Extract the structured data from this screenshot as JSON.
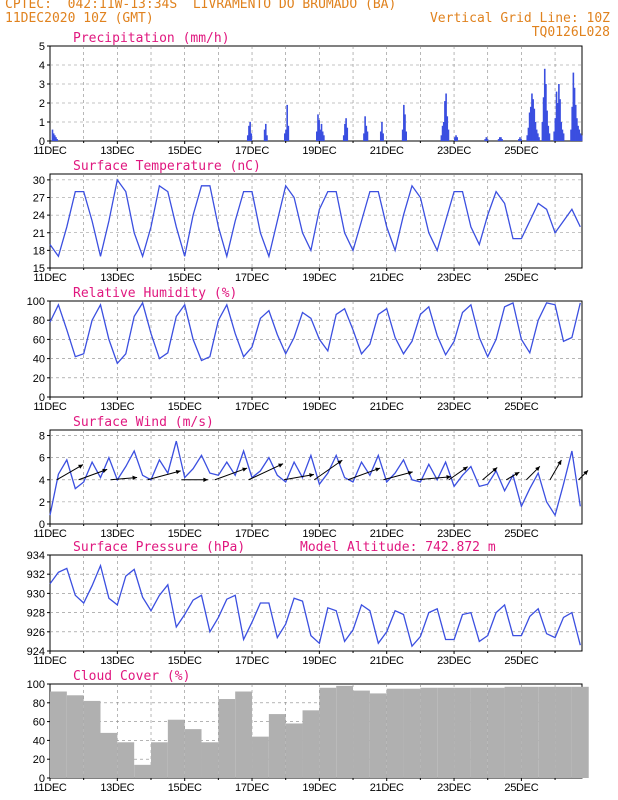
{
  "header": {
    "line1_left": "CPTEC:  042:11W-13:34S  LIVRAMENTO DO BRUMADO (BA)",
    "line2_left": "11DEC2020 10Z (GMT)",
    "line2_right": "Vertical Grid Line: 10Z",
    "line3_right": "TQ0126L028"
  },
  "colors": {
    "header": "#e0821e",
    "panel_title": "#e0177f",
    "line": "#3b4fe0",
    "cloud": "#b0b0b0"
  },
  "x_tick_labels": [
    "11DEC",
    "13DEC",
    "15DEC",
    "17DEC",
    "19DEC",
    "21DEC",
    "23DEC",
    "25DEC"
  ],
  "chart_data": [
    {
      "type": "bar",
      "title": "Precipitation (mm/h)",
      "ylim": [
        0,
        5
      ],
      "yticks": [
        0,
        1,
        2,
        3,
        4,
        5
      ],
      "x_unit": "days since 11DEC2020 10Z",
      "events": [
        {
          "x": 0.05,
          "values": [
            0.6,
            0.4,
            0.3,
            0.2,
            0.1
          ]
        },
        {
          "x": 5.85,
          "values": [
            0.3,
            0.8,
            1.0,
            0.4
          ]
        },
        {
          "x": 6.35,
          "values": [
            0.6,
            0.9,
            0.3
          ]
        },
        {
          "x": 6.95,
          "values": [
            0.4,
            0.6,
            1.9,
            0.8
          ]
        },
        {
          "x": 7.9,
          "values": [
            0.5,
            1.4,
            1.1,
            0.6,
            0.9,
            0.5,
            0.3
          ]
        },
        {
          "x": 8.7,
          "values": [
            0.3,
            0.9,
            1.2,
            0.7
          ]
        },
        {
          "x": 9.3,
          "values": [
            0.4,
            1.3,
            0.8,
            0.5
          ]
        },
        {
          "x": 9.8,
          "values": [
            0.5,
            1.0,
            0.4
          ]
        },
        {
          "x": 10.45,
          "values": [
            0.6,
            1.9,
            1.4,
            0.5
          ]
        },
        {
          "x": 11.6,
          "values": [
            0.3,
            0.8,
            1.0,
            2.1,
            2.5,
            1.3,
            0.6
          ]
        },
        {
          "x": 12.0,
          "values": [
            0.2,
            0.3,
            0.2
          ]
        },
        {
          "x": 12.9,
          "values": [
            0.1,
            0.2,
            0.1
          ]
        },
        {
          "x": 13.3,
          "values": [
            0.1,
            0.2,
            0.2,
            0.1
          ]
        },
        {
          "x": 13.9,
          "values": [
            0.1,
            0.2,
            0.1
          ]
        },
        {
          "x": 14.15,
          "values": [
            0.3,
            0.7,
            1.5,
            1.8,
            2.5,
            2.2,
            1.7,
            1.0,
            0.6,
            0.4,
            0.2
          ]
        },
        {
          "x": 14.6,
          "values": [
            1.0,
            2.3,
            3.8,
            3.0,
            1.6,
            0.8,
            0.4
          ]
        },
        {
          "x": 14.95,
          "values": [
            0.5,
            1.2,
            2.6,
            2.0,
            3.0,
            2.2,
            1.0,
            0.6,
            0.4
          ]
        },
        {
          "x": 15.45,
          "values": [
            0.6,
            1.8,
            3.6,
            2.8,
            1.9,
            1.2,
            0.8,
            0.6,
            0.4,
            0.3
          ]
        }
      ]
    },
    {
      "type": "line",
      "title": "Surface Temperature (nC)",
      "ylim": [
        15,
        31
      ],
      "yticks": [
        15,
        18,
        21,
        24,
        27,
        30
      ],
      "x_unit": "days since 11DEC2020 10Z",
      "x": [
        0.0,
        0.25,
        0.5,
        0.75,
        1.0,
        1.25,
        1.5,
        1.75,
        2.0,
        2.25,
        2.5,
        2.75,
        3.0,
        3.25,
        3.5,
        3.75,
        4.0,
        4.25,
        4.5,
        4.75,
        5.0,
        5.25,
        5.5,
        5.75,
        6.0,
        6.25,
        6.5,
        6.75,
        7.0,
        7.25,
        7.5,
        7.75,
        8.0,
        8.25,
        8.5,
        8.75,
        9.0,
        9.25,
        9.5,
        9.75,
        10.0,
        10.25,
        10.5,
        10.75,
        11.0,
        11.25,
        11.5,
        11.75,
        12.0,
        12.25,
        12.5,
        12.75,
        13.0,
        13.25,
        13.5,
        13.75,
        14.0,
        14.25,
        14.5,
        14.75,
        15.0,
        15.25,
        15.5,
        15.75
      ],
      "y": [
        19,
        17,
        22,
        28,
        28,
        23,
        17,
        23,
        30,
        28,
        21,
        17,
        22,
        29,
        28,
        22,
        17,
        24,
        29,
        29,
        22,
        17,
        23,
        28,
        28,
        21,
        17,
        23,
        29,
        27,
        21,
        18,
        25,
        28,
        28,
        21,
        18,
        23,
        28,
        28,
        22,
        18,
        24,
        29,
        27,
        21,
        18,
        23,
        28,
        28,
        22,
        19,
        24,
        28,
        26,
        20,
        20,
        23,
        26,
        25,
        21,
        23,
        25,
        22
      ]
    },
    {
      "type": "line",
      "title": "Relative Humidity (%)",
      "ylim": [
        0,
        100
      ],
      "yticks": [
        0,
        20,
        40,
        60,
        80,
        100
      ],
      "x_unit": "days since 11DEC2020 10Z",
      "x": [
        0.0,
        0.25,
        0.5,
        0.75,
        1.0,
        1.25,
        1.5,
        1.75,
        2.0,
        2.25,
        2.5,
        2.75,
        3.0,
        3.25,
        3.5,
        3.75,
        4.0,
        4.25,
        4.5,
        4.75,
        5.0,
        5.25,
        5.5,
        5.75,
        6.0,
        6.25,
        6.5,
        6.75,
        7.0,
        7.25,
        7.5,
        7.75,
        8.0,
        8.25,
        8.5,
        8.75,
        9.0,
        9.25,
        9.5,
        9.75,
        10.0,
        10.25,
        10.5,
        10.75,
        11.0,
        11.25,
        11.5,
        11.75,
        12.0,
        12.25,
        12.5,
        12.75,
        13.0,
        13.25,
        13.5,
        13.75,
        14.0,
        14.25,
        14.5,
        14.75,
        15.0,
        15.25,
        15.5,
        15.75
      ],
      "y": [
        78,
        96,
        70,
        42,
        45,
        80,
        96,
        60,
        35,
        45,
        84,
        98,
        66,
        40,
        46,
        84,
        96,
        60,
        38,
        42,
        80,
        96,
        66,
        42,
        52,
        82,
        90,
        65,
        45,
        62,
        88,
        82,
        60,
        48,
        86,
        92,
        70,
        45,
        55,
        86,
        92,
        62,
        45,
        58,
        86,
        94,
        64,
        44,
        58,
        88,
        96,
        62,
        42,
        60,
        94,
        98,
        60,
        46,
        80,
        98,
        96,
        58,
        62,
        98
      ]
    },
    {
      "type": "line",
      "title": "Surface Wind (m/s)",
      "ylim": [
        0,
        8.5
      ],
      "yticks": [
        0,
        2,
        4,
        6,
        8
      ],
      "x_unit": "days since 11DEC2020 10Z",
      "x": [
        0.0,
        0.25,
        0.5,
        0.75,
        1.0,
        1.25,
        1.5,
        1.75,
        2.0,
        2.25,
        2.5,
        2.75,
        3.0,
        3.25,
        3.5,
        3.75,
        4.0,
        4.25,
        4.5,
        4.75,
        5.0,
        5.25,
        5.5,
        5.75,
        6.0,
        6.25,
        6.5,
        6.75,
        7.0,
        7.25,
        7.5,
        7.75,
        8.0,
        8.25,
        8.5,
        8.75,
        9.0,
        9.25,
        9.5,
        9.75,
        10.0,
        10.25,
        10.5,
        10.75,
        11.0,
        11.25,
        11.5,
        11.75,
        12.0,
        12.25,
        12.5,
        12.75,
        13.0,
        13.25,
        13.5,
        13.75,
        14.0,
        14.25,
        14.5,
        14.75,
        15.0,
        15.25,
        15.5,
        15.75
      ],
      "y": [
        0.8,
        4.5,
        5.8,
        3.2,
        3.8,
        5.6,
        4.2,
        6.0,
        4.0,
        5.2,
        6.6,
        4.4,
        4.0,
        5.8,
        4.6,
        7.5,
        4.2,
        5.0,
        6.2,
        4.6,
        4.4,
        5.6,
        4.4,
        6.6,
        4.2,
        4.8,
        6.0,
        4.4,
        3.8,
        5.6,
        4.2,
        6.2,
        3.6,
        4.6,
        6.2,
        4.2,
        3.8,
        5.6,
        4.4,
        6.2,
        3.8,
        4.6,
        5.8,
        4.0,
        3.8,
        5.4,
        4.0,
        5.6,
        3.4,
        4.4,
        5.2,
        3.4,
        3.6,
        4.8,
        3.0,
        4.4,
        1.6,
        3.2,
        4.6,
        2.0,
        0.8,
        3.6,
        6.6,
        1.6
      ],
      "wind_vectors": [
        {
          "x": 0.2,
          "dir": 240,
          "len": 0.8
        },
        {
          "x": 0.85,
          "dir": 250,
          "len": 0.8
        },
        {
          "x": 1.8,
          "dir": 265,
          "len": 0.7
        },
        {
          "x": 2.9,
          "dir": 255,
          "len": 0.9
        },
        {
          "x": 3.9,
          "dir": 270,
          "len": 0.7
        },
        {
          "x": 4.9,
          "dir": 250,
          "len": 0.9
        },
        {
          "x": 5.9,
          "dir": 245,
          "len": 1.0
        },
        {
          "x": 6.95,
          "dir": 260,
          "len": 0.8
        },
        {
          "x": 7.85,
          "dir": 235,
          "len": 0.9
        },
        {
          "x": 8.85,
          "dir": 250,
          "len": 0.9
        },
        {
          "x": 9.9,
          "dir": 255,
          "len": 0.8
        },
        {
          "x": 10.9,
          "dir": 265,
          "len": 0.9
        },
        {
          "x": 11.85,
          "dir": 235,
          "len": 0.6
        },
        {
          "x": 12.85,
          "dir": 230,
          "len": 0.5
        },
        {
          "x": 13.55,
          "dir": 240,
          "len": 0.4
        },
        {
          "x": 14.15,
          "dir": 225,
          "len": 0.5
        },
        {
          "x": 14.85,
          "dir": 210,
          "len": 0.6
        },
        {
          "x": 15.7,
          "dir": 225,
          "len": 0.35
        }
      ]
    },
    {
      "type": "line",
      "title": "Surface Pressure (hPa)",
      "annotation": "Model Altitude: 742.872 m",
      "ylim": [
        924,
        934
      ],
      "yticks": [
        924,
        926,
        928,
        930,
        932,
        934
      ],
      "x_unit": "days since 11DEC2020 10Z",
      "x": [
        0.0,
        0.25,
        0.5,
        0.75,
        1.0,
        1.25,
        1.5,
        1.75,
        2.0,
        2.25,
        2.5,
        2.75,
        3.0,
        3.25,
        3.5,
        3.75,
        4.0,
        4.25,
        4.5,
        4.75,
        5.0,
        5.25,
        5.5,
        5.75,
        6.0,
        6.25,
        6.5,
        6.75,
        7.0,
        7.25,
        7.5,
        7.75,
        8.0,
        8.25,
        8.5,
        8.75,
        9.0,
        9.25,
        9.5,
        9.75,
        10.0,
        10.25,
        10.5,
        10.75,
        11.0,
        11.25,
        11.5,
        11.75,
        12.0,
        12.25,
        12.5,
        12.75,
        13.0,
        13.25,
        13.5,
        13.75,
        14.0,
        14.25,
        14.5,
        14.75,
        15.0,
        15.25,
        15.5,
        15.75
      ],
      "y": [
        931,
        932.2,
        932.6,
        929.8,
        929.0,
        930.8,
        932.9,
        929.5,
        928.8,
        931.8,
        932.5,
        929.6,
        928.2,
        929.8,
        930.9,
        926.5,
        927.8,
        929.3,
        929.8,
        926.0,
        927.5,
        929.4,
        929.8,
        925.2,
        927.0,
        929.0,
        929.0,
        925.4,
        926.8,
        929.5,
        929.2,
        925.6,
        924.8,
        928.5,
        928.2,
        925.0,
        926.2,
        928.8,
        928.2,
        924.8,
        926.0,
        928.2,
        927.8,
        924.5,
        925.5,
        928.0,
        928.4,
        925.2,
        925.2,
        927.8,
        928.0,
        925.0,
        925.6,
        928.0,
        928.8,
        925.6,
        925.6,
        927.6,
        928.4,
        925.8,
        925.4,
        927.5,
        928.0,
        924.6
      ]
    },
    {
      "type": "bar",
      "title": "Cloud Cover (%)",
      "ylim": [
        0,
        100
      ],
      "yticks": [
        0,
        20,
        40,
        60,
        80,
        100
      ],
      "x_unit": "days since 11DEC2020 10Z",
      "x": [
        0.0,
        0.5,
        1.0,
        1.5,
        2.0,
        2.5,
        3.0,
        3.5,
        4.0,
        4.5,
        5.0,
        5.5,
        6.0,
        6.5,
        7.0,
        7.5,
        8.0,
        8.5,
        9.0,
        9.5,
        10.0,
        10.5,
        11.0,
        11.5,
        12.0,
        12.5,
        13.0,
        13.5,
        14.0,
        14.5,
        15.0,
        15.5
      ],
      "values": [
        92,
        88,
        82,
        48,
        38,
        14,
        38,
        62,
        52,
        38,
        84,
        92,
        44,
        68,
        58,
        72,
        96,
        98,
        93,
        90,
        95,
        95,
        96,
        96,
        96,
        96,
        96,
        97,
        97,
        97,
        97,
        97
      ]
    }
  ]
}
